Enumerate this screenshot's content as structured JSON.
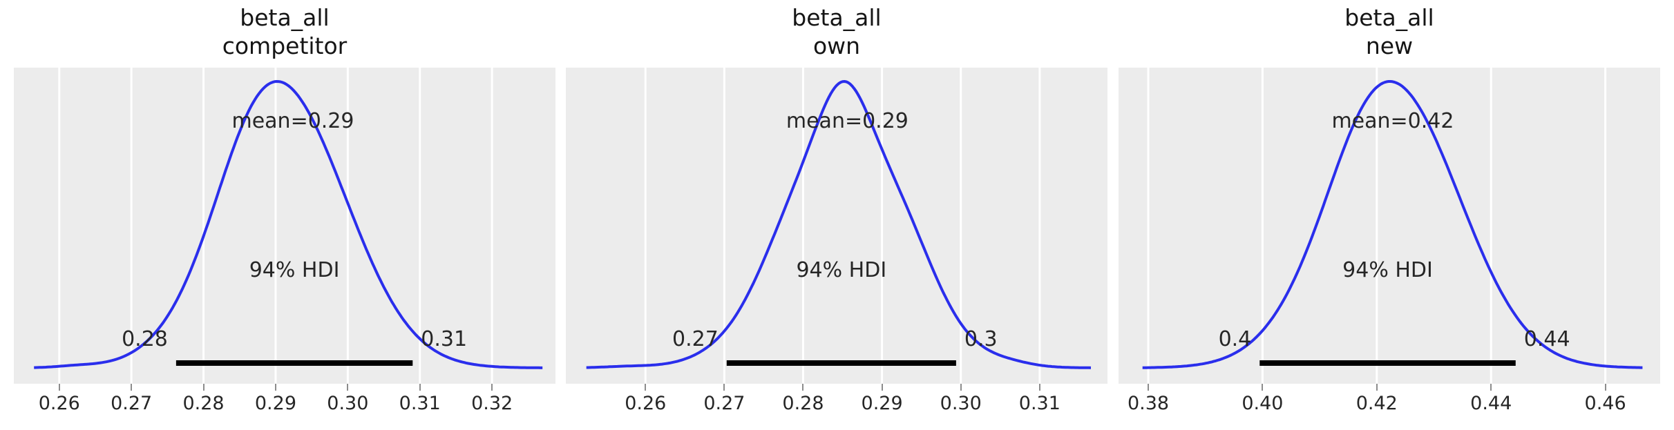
{
  "figure": {
    "kind": "posterior-density-grid",
    "colors": {
      "curve": "#2a2eec",
      "plot_background": "#ececec",
      "gridline": "#ffffff",
      "hdi_bar": "#000000",
      "text": "#262626",
      "title_text": "#151515",
      "tick_mark": "#8c8c8c"
    }
  },
  "chart_data": {
    "type": "line",
    "subtype": "posterior-kde",
    "legend": null,
    "grid": "vertical-white-on-gray",
    "panels": [
      {
        "title_line1": "beta_all",
        "title_line2": "competitor",
        "mean": 0.2924,
        "mean_label": "mean=0.29",
        "hdi_text": "94% HDI",
        "hdi_prob": 0.94,
        "hdi_low": 0.2762,
        "hdi_high": 0.309,
        "hdi_low_label": "0.28",
        "hdi_high_label": "0.31",
        "xlim": [
          0.2537,
          0.3288
        ],
        "xticks": [
          0.26,
          0.27,
          0.28,
          0.29,
          0.3,
          0.31,
          0.32
        ],
        "xtick_labels": [
          "0.26",
          "0.27",
          "0.28",
          "0.29",
          "0.30",
          "0.31",
          "0.32"
        ],
        "curve": {
          "range": [
            0.2565,
            0.327
          ],
          "components": [
            {
              "mean": 0.2913,
              "sd": 0.0089,
              "weight": 1
            },
            {
              "mean": 0.2865,
              "sd": 0.005,
              "weight": 0.12
            },
            {
              "mean": 0.2625,
              "sd": 0.0028,
              "weight": 0.006
            }
          ]
        }
      },
      {
        "title_line1": "beta_all",
        "title_line2": "own",
        "mean": 0.2856,
        "mean_label": "mean=0.29",
        "hdi_text": "94% HDI",
        "hdi_prob": 0.94,
        "hdi_low": 0.2703,
        "hdi_high": 0.2994,
        "hdi_low_label": "0.27",
        "hdi_high_label": "0.3",
        "xlim": [
          0.2499,
          0.3186
        ],
        "xticks": [
          0.26,
          0.27,
          0.28,
          0.29,
          0.3,
          0.31
        ],
        "xtick_labels": [
          "0.26",
          "0.27",
          "0.28",
          "0.29",
          "0.30",
          "0.31"
        ],
        "curve": {
          "range": [
            0.2525,
            0.3165
          ],
          "components": [
            {
              "mean": 0.2852,
              "sd": 0.008,
              "weight": 1
            },
            {
              "mean": 0.2852,
              "sd": 0.003,
              "weight": 0.3
            },
            {
              "mean": 0.2928,
              "sd": 0.004,
              "weight": 0.14
            },
            {
              "mean": 0.2788,
              "sd": 0.004,
              "weight": 0.1
            },
            {
              "mean": 0.3062,
              "sd": 0.0028,
              "weight": 0.012
            },
            {
              "mean": 0.2578,
              "sd": 0.003,
              "weight": 0.006
            }
          ]
        }
      },
      {
        "title_line1": "beta_all",
        "title_line2": "new",
        "mean": 0.4228,
        "mean_label": "mean=0.42",
        "hdi_text": "94% HDI",
        "hdi_prob": 0.94,
        "hdi_low": 0.3995,
        "hdi_high": 0.4443,
        "hdi_low_label": "0.4",
        "hdi_high_label": "0.44",
        "xlim": [
          0.3748,
          0.4696
        ],
        "xticks": [
          0.38,
          0.4,
          0.42,
          0.44,
          0.46
        ],
        "xtick_labels": [
          "0.38",
          "0.40",
          "0.42",
          "0.44",
          "0.46"
        ],
        "curve": {
          "range": [
            0.379,
            0.4665
          ],
          "components": [
            {
              "mean": 0.4232,
              "sd": 0.0116,
              "weight": 1
            },
            {
              "mean": 0.4175,
              "sd": 0.006,
              "weight": 0.07
            }
          ]
        }
      }
    ]
  }
}
